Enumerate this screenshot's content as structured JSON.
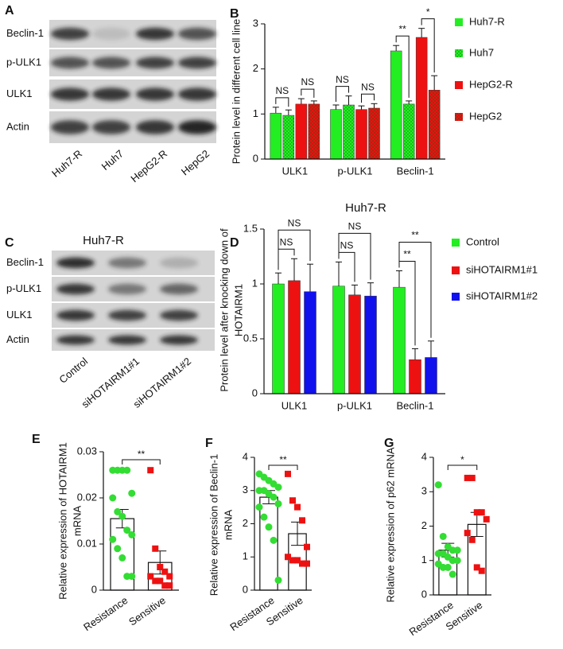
{
  "blots": [
    {
      "panel": "A",
      "rows": [
        "Beclin-1",
        "p-ULK1",
        "ULK1",
        "Actin"
      ],
      "lanes": [
        "Huh7-R",
        "Huh7",
        "HepG2-R",
        "HepG2"
      ]
    },
    {
      "panel": "C",
      "title": "Huh7-R",
      "rows": [
        "Beclin-1",
        "p-ULK1",
        "ULK1",
        "Actin"
      ],
      "lanes": [
        "Control",
        "siHOTAIRM1#1",
        "siHOTAIRM1#2"
      ]
    }
  ],
  "chart_data": [
    {
      "type": "bar",
      "panel": "B",
      "ylabel": [
        "Protein level in different cell line"
      ],
      "categories": [
        "ULK1",
        "p-ULK1",
        "Beclin-1"
      ],
      "series": [
        {
          "name": "Huh7-R",
          "color": "#22ee22",
          "hatch": false,
          "values": [
            1.02,
            1.1,
            2.4
          ],
          "errors": [
            0.13,
            0.1,
            0.12
          ]
        },
        {
          "name": "Huh7",
          "color": "#22ee22",
          "hatch": true,
          "values": [
            0.97,
            1.2,
            1.22
          ],
          "errors": [
            0.12,
            0.2,
            0.07
          ]
        },
        {
          "name": "HepG2-R",
          "color": "#ee1111",
          "hatch": false,
          "values": [
            1.22,
            1.1,
            2.7
          ],
          "errors": [
            0.12,
            0.08,
            0.2
          ]
        },
        {
          "name": "HepG2",
          "color": "#ee1111",
          "hatch": true,
          "values": [
            1.22,
            1.13,
            1.53
          ],
          "errors": [
            0.07,
            0.1,
            0.32
          ]
        }
      ],
      "ylim": [
        0,
        3
      ],
      "yticks": [
        0,
        1,
        2,
        3
      ],
      "annotations": [
        "NS",
        "NS",
        "NS",
        "NS",
        "**",
        "*"
      ]
    },
    {
      "type": "bar",
      "panel": "D",
      "title": "Huh7-R",
      "ylabel": [
        "Protein level after knocking down of",
        "HOTAIRM1"
      ],
      "categories": [
        "ULK1",
        "p-ULK1",
        "Beclin-1"
      ],
      "series": [
        {
          "name": "Control",
          "color": "#22ee22",
          "hatch": false,
          "values": [
            1.0,
            0.98,
            0.97
          ],
          "errors": [
            0.1,
            0.22,
            0.15
          ]
        },
        {
          "name": "siHOTAIRM1#1",
          "color": "#ee1111",
          "hatch": false,
          "values": [
            1.03,
            0.9,
            0.31
          ],
          "errors": [
            0.2,
            0.09,
            0.1
          ]
        },
        {
          "name": "siHOTAIRM1#2",
          "color": "#1111ee",
          "hatch": false,
          "values": [
            0.93,
            0.89,
            0.33
          ],
          "errors": [
            0.25,
            0.12,
            0.15
          ]
        }
      ],
      "ylim": [
        0,
        1.5
      ],
      "yticks": [
        0,
        0.5,
        1,
        1.5
      ],
      "annotations": [
        "NS",
        "NS",
        "NS",
        "NS",
        "**",
        "**"
      ]
    },
    {
      "type": "dotplot",
      "panel": "E",
      "ylabel": [
        "Relative expression of HOTAIRM1",
        "mRNA"
      ],
      "categories": [
        "Resistance",
        "Sensitive"
      ],
      "values": [
        0.0155,
        0.006
      ],
      "errors": [
        0.002,
        0.0025
      ],
      "point_colors": [
        "#33dd33",
        "#ee1111"
      ],
      "markers": [
        "circle",
        "square"
      ],
      "points": [
        [
          0.026,
          0.026,
          0.026,
          0.026,
          0.021,
          0.02,
          0.017,
          0.016,
          0.013,
          0.012,
          0.011,
          0.009,
          0.007,
          0.003,
          0.003
        ],
        [
          0.026,
          0.009,
          0.005,
          0.004,
          0.003,
          0.003,
          0.002,
          0.002,
          0.001,
          0.001
        ]
      ],
      "ylim": [
        0,
        0.03
      ],
      "yticks": [
        0,
        0.01,
        0.02,
        0.03
      ],
      "annotations": [
        "**"
      ]
    },
    {
      "type": "dotplot",
      "panel": "F",
      "ylabel": [
        "Relative expression of Beclin-1",
        "mRNA"
      ],
      "categories": [
        "Resistance",
        "Sensitive"
      ],
      "values": [
        2.8,
        1.7
      ],
      "errors": [
        0.2,
        0.35
      ],
      "point_colors": [
        "#33dd33",
        "#ee1111"
      ],
      "markers": [
        "circle",
        "square"
      ],
      "points": [
        [
          3.5,
          3.4,
          3.3,
          3.2,
          3.1,
          3.0,
          3.0,
          2.9,
          2.8,
          2.6,
          2.5,
          2.2,
          1.9,
          1.5,
          0.3
        ],
        [
          3.5,
          2.7,
          2.5,
          2.1,
          1.3,
          1.0,
          0.9,
          0.9,
          0.8,
          0.8
        ]
      ],
      "ylim": [
        0,
        4
      ],
      "yticks": [
        0,
        1,
        2,
        3,
        4
      ],
      "annotations": [
        "**"
      ]
    },
    {
      "type": "dotplot",
      "panel": "G",
      "ylabel": [
        "Relative expression of p62 mRNA"
      ],
      "categories": [
        "Resistance",
        "Sensitive"
      ],
      "values": [
        1.3,
        2.05
      ],
      "errors": [
        0.2,
        0.35
      ],
      "point_colors": [
        "#33dd33",
        "#ee1111"
      ],
      "markers": [
        "circle",
        "square"
      ],
      "points": [
        [
          3.2,
          1.7,
          1.4,
          1.3,
          1.3,
          1.2,
          1.2,
          1.1,
          1.0,
          1.0,
          0.9,
          0.8,
          0.8,
          0.6
        ],
        [
          3.4,
          3.4,
          2.4,
          2.4,
          2.2,
          1.8,
          1.6,
          0.8,
          0.7
        ]
      ],
      "ylim": [
        0,
        4
      ],
      "yticks": [
        0,
        1,
        2,
        3,
        4
      ],
      "annotations": [
        "*"
      ]
    }
  ]
}
